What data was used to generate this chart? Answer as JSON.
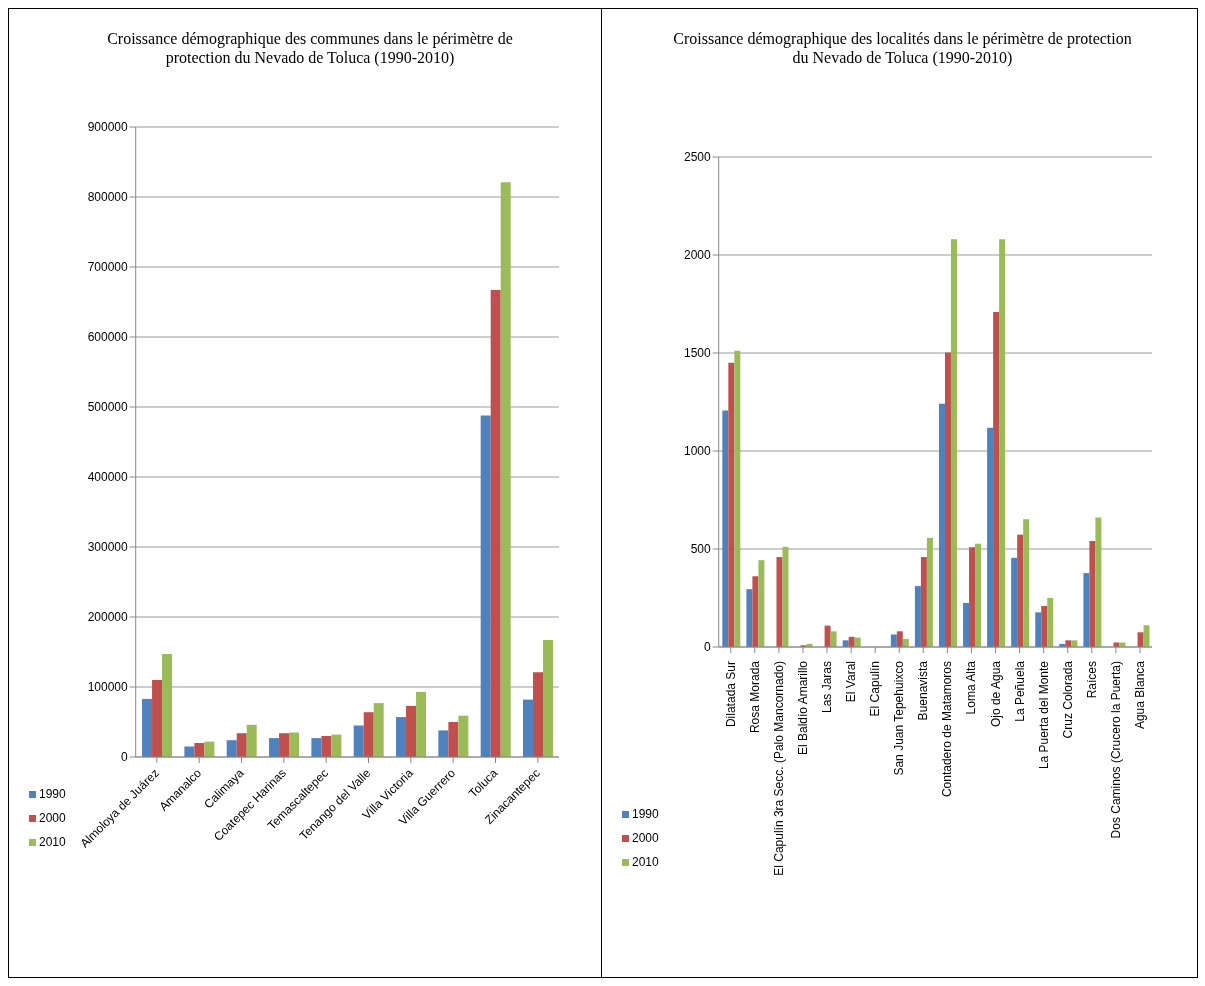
{
  "chart_data": [
    {
      "type": "bar",
      "title": "Croissance démographique des communes dans le périmètre de protection du Nevado de Toluca (1990-2010)",
      "categories": [
        "Almoloya de Juárez",
        "Amanalco",
        "Calimaya",
        "Coatepec Harinas",
        "Temascaltepec",
        "Tenango del Valle",
        "Villa Victoria",
        "Villa Guerrero",
        "Toluca",
        "Zinacantepec"
      ],
      "series": [
        {
          "name": "1990",
          "color": "#4f81bd",
          "values": [
            83000,
            15000,
            24000,
            27000,
            27000,
            45000,
            57000,
            38000,
            488000,
            82000
          ]
        },
        {
          "name": "2000",
          "color": "#c0504d",
          "values": [
            110000,
            20000,
            34000,
            34000,
            30000,
            64000,
            73000,
            50000,
            667000,
            121000
          ]
        },
        {
          "name": "2010",
          "color": "#9bbb59",
          "values": [
            147000,
            22000,
            46000,
            35000,
            32000,
            77000,
            93000,
            59000,
            821000,
            167000
          ]
        }
      ],
      "ylim": [
        0,
        900000
      ],
      "yticks": [
        0,
        100000,
        200000,
        300000,
        400000,
        500000,
        600000,
        700000,
        800000,
        900000
      ],
      "grid": "y",
      "legend": "bottom left"
    },
    {
      "type": "bar",
      "title": "Croissance démographique des localités dans le périmètre de protection du Nevado de Toluca (1990-2010)",
      "categories": [
        "Dilatada Sur",
        "Rosa Morada",
        "El Capulín 3ra Secc. (Palo Mancornado)",
        "El Baldío Amarillo",
        "Las Jaras",
        "El Varal",
        "El Capulín",
        "San Juan Tepehuixco",
        "Buenavista",
        "Contadero de Matamoros",
        "Loma Alta",
        "Ojo de Agua",
        "La Peñuela",
        "La Puerta del Monte",
        "Cruz Colorada",
        "Raíces",
        "Dos Caminos (Crucero la Puerta)",
        "Agua Blanca"
      ],
      "series": [
        {
          "name": "1990",
          "color": "#4f81bd",
          "values": [
            1207,
            295,
            0,
            0,
            0,
            34,
            0,
            64,
            311,
            1241,
            225,
            1118,
            455,
            177,
            16,
            377,
            0,
            0
          ]
        },
        {
          "name": "2000",
          "color": "#c0504d",
          "values": [
            1450,
            361,
            459,
            9,
            109,
            52,
            0,
            80,
            459,
            1502,
            509,
            1709,
            573,
            209,
            34,
            541,
            23,
            75
          ]
        },
        {
          "name": "2010",
          "color": "#9bbb59",
          "values": [
            1511,
            443,
            511,
            16,
            80,
            48,
            0,
            41,
            557,
            2080,
            527,
            2080,
            652,
            250,
            34,
            661,
            23,
            111
          ]
        }
      ],
      "ylim": [
        0,
        2500
      ],
      "yticks": [
        0,
        500,
        1000,
        1500,
        2000,
        2500
      ],
      "grid": "y",
      "legend": "bottom left"
    }
  ]
}
